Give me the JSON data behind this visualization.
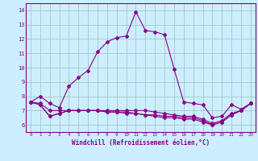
{
  "xlabel": "Windchill (Refroidissement éolien,°C)",
  "background_color": "#cceeff",
  "grid_color": "#aacccc",
  "line_color": "#880088",
  "xlim": [
    -0.5,
    23.5
  ],
  "ylim": [
    5.5,
    14.5
  ],
  "yticks": [
    6,
    7,
    8,
    9,
    10,
    11,
    12,
    13,
    14
  ],
  "xticks": [
    0,
    1,
    2,
    3,
    4,
    5,
    6,
    7,
    8,
    9,
    10,
    11,
    12,
    13,
    14,
    15,
    16,
    17,
    18,
    19,
    20,
    21,
    22,
    23
  ],
  "series": [
    [
      7.6,
      8.0,
      7.5,
      7.2,
      8.7,
      9.3,
      9.8,
      11.1,
      11.8,
      12.1,
      12.2,
      13.9,
      12.6,
      12.5,
      12.3,
      9.9,
      7.6,
      7.5,
      7.4,
      6.5,
      6.6,
      7.4,
      7.1,
      7.5
    ],
    [
      7.6,
      7.5,
      7.0,
      7.0,
      7.0,
      7.0,
      7.0,
      7.0,
      7.0,
      7.0,
      7.0,
      7.0,
      7.0,
      6.9,
      6.8,
      6.7,
      6.6,
      6.6,
      6.4,
      6.1,
      6.3,
      6.8,
      7.0,
      7.5
    ],
    [
      7.6,
      7.4,
      6.6,
      6.8,
      7.0,
      7.0,
      7.0,
      7.0,
      6.9,
      6.9,
      6.9,
      6.8,
      6.7,
      6.7,
      6.6,
      6.6,
      6.5,
      6.5,
      6.3,
      6.0,
      6.2,
      6.7,
      7.0,
      7.5
    ],
    [
      7.6,
      7.4,
      6.6,
      6.8,
      7.0,
      7.0,
      7.0,
      7.0,
      6.9,
      6.9,
      6.8,
      6.8,
      6.7,
      6.6,
      6.5,
      6.5,
      6.4,
      6.4,
      6.2,
      6.0,
      6.2,
      6.7,
      7.0,
      7.5
    ]
  ]
}
